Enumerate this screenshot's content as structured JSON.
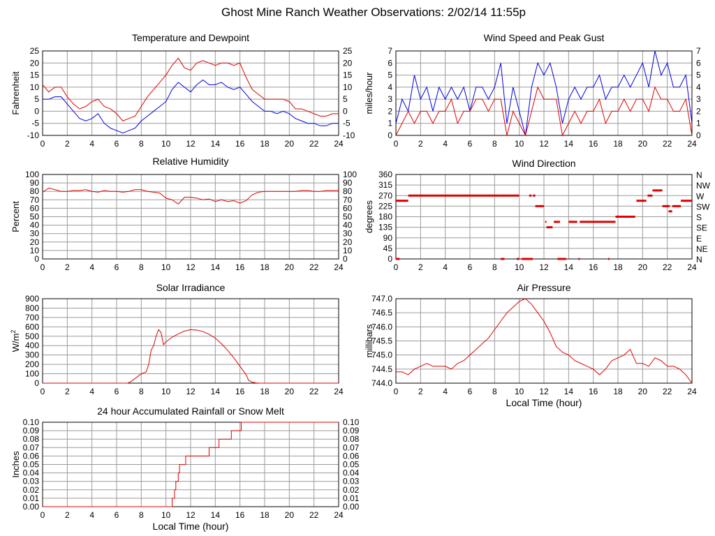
{
  "page": {
    "title": "Ghost Mine Ranch Weather Observations: 2/02/14 11:55p"
  },
  "colors": {
    "red": "#e00000",
    "blue": "#0000e0",
    "grid": "#9a9a9a"
  },
  "chart_data": [
    {
      "id": "temp",
      "type": "line",
      "title": "Temperature and Dewpoint",
      "ylabel": "Fahrenheit",
      "xlabel": "",
      "xlim": [
        0,
        24
      ],
      "ylim": [
        -10,
        25
      ],
      "x_ticks": [
        "0",
        "2",
        "4",
        "6",
        "8",
        "10",
        "12",
        "14",
        "16",
        "18",
        "20",
        "22",
        "24"
      ],
      "y_ticks": [
        "-10",
        "-5",
        "0",
        "5",
        "10",
        "15",
        "20",
        "25"
      ],
      "right_axis": true,
      "grid": true,
      "series": [
        {
          "color": "#e00000",
          "x": [
            0,
            0.5,
            1,
            1.5,
            2,
            2.5,
            3,
            3.5,
            4,
            4.5,
            5,
            5.5,
            6,
            6.5,
            7,
            7.5,
            8,
            8.5,
            9,
            9.5,
            10,
            10.5,
            11,
            11.5,
            12,
            12.5,
            13,
            13.5,
            14,
            14.5,
            15,
            15.5,
            16,
            16.5,
            17,
            17.5,
            18,
            18.5,
            19,
            19.5,
            20,
            20.5,
            21,
            21.5,
            22,
            22.5,
            23,
            23.5,
            24
          ],
          "y": [
            11,
            8,
            10,
            10,
            6,
            3,
            1,
            2,
            4,
            5,
            2,
            1,
            -1,
            -4,
            -3,
            -2,
            2,
            6,
            9,
            12,
            15,
            19,
            22,
            18,
            17,
            20,
            21,
            20,
            19,
            20,
            20,
            19,
            20,
            14,
            9,
            7,
            5,
            5,
            5,
            5,
            4,
            1,
            1,
            0,
            -1,
            -2,
            -2,
            -1,
            -1
          ]
        },
        {
          "color": "#0000e0",
          "x": [
            0,
            0.5,
            1,
            1.5,
            2,
            2.5,
            3,
            3.5,
            4,
            4.5,
            5,
            5.5,
            6,
            6.5,
            7,
            7.5,
            8,
            8.5,
            9,
            9.5,
            10,
            10.5,
            11,
            11.5,
            12,
            12.5,
            13,
            13.5,
            14,
            14.5,
            15,
            15.5,
            16,
            16.5,
            17,
            17.5,
            18,
            18.5,
            19,
            19.5,
            20,
            20.5,
            21,
            21.5,
            22,
            22.5,
            23,
            23.5,
            24
          ],
          "y": [
            5,
            5,
            6,
            6,
            3,
            0,
            -3,
            -4,
            -3,
            -1,
            -5,
            -7,
            -8,
            -9,
            -8,
            -7,
            -4,
            -2,
            0,
            2,
            4,
            9,
            12,
            10,
            8,
            11,
            13,
            11,
            11,
            12,
            10,
            9,
            10,
            7,
            4,
            2,
            0,
            0,
            -1,
            0,
            -1,
            -3,
            -4,
            -5,
            -5,
            -6,
            -6,
            -5,
            -5
          ]
        }
      ]
    },
    {
      "id": "wind",
      "type": "line",
      "title": "Wind Speed and Peak Gust",
      "ylabel": "miles/hour",
      "xlabel": "",
      "xlim": [
        0,
        24
      ],
      "ylim": [
        0,
        7
      ],
      "x_ticks": [
        "0",
        "2",
        "4",
        "6",
        "8",
        "10",
        "12",
        "14",
        "16",
        "18",
        "20",
        "22",
        "24"
      ],
      "y_ticks": [
        "0",
        "1",
        "2",
        "3",
        "4",
        "5",
        "6",
        "7"
      ],
      "right_axis": true,
      "grid": true,
      "series": [
        {
          "color": "#0000e0",
          "x": [
            0,
            0.5,
            1,
            1.5,
            2,
            2.5,
            3,
            3.5,
            4,
            4.5,
            5,
            5.5,
            6,
            6.5,
            7,
            7.5,
            8,
            8.5,
            9,
            9.5,
            10,
            10.5,
            11,
            11.5,
            12,
            12.5,
            13,
            13.5,
            14,
            14.5,
            15,
            15.5,
            16,
            16.5,
            17,
            17.5,
            18,
            18.5,
            19,
            19.5,
            20,
            20.5,
            21,
            21.5,
            22,
            22.5,
            23,
            23.5,
            24
          ],
          "y": [
            1,
            3,
            2,
            5,
            3,
            4,
            2,
            4,
            3,
            4,
            3,
            4,
            2,
            4,
            4,
            3,
            4,
            6,
            1,
            4,
            2,
            0,
            4,
            6,
            5,
            6,
            4,
            1,
            3,
            4,
            3,
            4,
            4,
            5,
            3,
            4,
            4,
            5,
            4,
            5,
            6,
            4,
            7,
            5,
            6,
            4,
            4,
            5,
            1
          ]
        },
        {
          "color": "#e00000",
          "x": [
            0,
            0.5,
            1,
            1.5,
            2,
            2.5,
            3,
            3.5,
            4,
            4.5,
            5,
            5.5,
            6,
            6.5,
            7,
            7.5,
            8,
            8.5,
            9,
            9.5,
            10,
            10.5,
            11,
            11.5,
            12,
            12.5,
            13,
            13.5,
            14,
            14.5,
            15,
            15.5,
            16,
            16.5,
            17,
            17.5,
            18,
            18.5,
            19,
            19.5,
            20,
            20.5,
            21,
            21.5,
            22,
            22.5,
            23,
            23.5,
            24
          ],
          "y": [
            0,
            1,
            2,
            1,
            2,
            2,
            1,
            2,
            2,
            3,
            1,
            2,
            2,
            3,
            3,
            2,
            3,
            3,
            0,
            2,
            1,
            0,
            2,
            4,
            3,
            3,
            3,
            0,
            1,
            2,
            1,
            2,
            2,
            3,
            1,
            2,
            2,
            3,
            2,
            3,
            3,
            2,
            4,
            3,
            3,
            2,
            2,
            3,
            0
          ]
        }
      ]
    },
    {
      "id": "rh",
      "type": "line",
      "title": "Relative Humidity",
      "ylabel": "Percent",
      "xlabel": "",
      "xlim": [
        0,
        24
      ],
      "ylim": [
        0,
        100
      ],
      "x_ticks": [
        "0",
        "2",
        "4",
        "6",
        "8",
        "10",
        "12",
        "14",
        "16",
        "18",
        "20",
        "22",
        "24"
      ],
      "y_ticks": [
        "0",
        "10",
        "20",
        "30",
        "40",
        "50",
        "60",
        "70",
        "80",
        "90",
        "100"
      ],
      "right_axis": true,
      "grid": true,
      "series": [
        {
          "color": "#e00000",
          "x": [
            0,
            0.5,
            1,
            1.5,
            2,
            2.5,
            3,
            3.5,
            4,
            4.5,
            5,
            5.5,
            6,
            6.5,
            7,
            7.5,
            8,
            8.5,
            9,
            9.5,
            10,
            10.5,
            11,
            11.5,
            12,
            12.5,
            13,
            13.5,
            14,
            14.5,
            15,
            15.5,
            16,
            16.5,
            17,
            17.5,
            18,
            18.5,
            19,
            19.5,
            20,
            20.5,
            21,
            21.5,
            22,
            22.5,
            23,
            23.5,
            24
          ],
          "y": [
            79,
            84,
            82,
            80,
            80,
            81,
            81,
            82,
            80,
            79,
            81,
            80,
            80,
            79,
            80,
            82,
            82,
            80,
            79,
            78,
            72,
            70,
            65,
            73,
            73,
            72,
            70,
            71,
            68,
            70,
            68,
            69,
            66,
            69,
            76,
            79,
            80,
            80,
            80,
            80,
            80,
            80,
            81,
            81,
            80,
            80,
            81,
            81,
            81
          ]
        }
      ]
    },
    {
      "id": "wdir",
      "type": "scatter",
      "title": "Wind Direction",
      "ylabel": "degrees",
      "xlabel": "",
      "xlim": [
        0,
        24
      ],
      "ylim": [
        0,
        360
      ],
      "x_ticks": [
        "0",
        "2",
        "4",
        "6",
        "8",
        "10",
        "12",
        "14",
        "16",
        "18",
        "20",
        "22",
        "24"
      ],
      "y_ticks": [
        "0",
        "45",
        "90",
        "135",
        "180",
        "225",
        "270",
        "315",
        "360"
      ],
      "right_labels": [
        "N",
        "NE",
        "E",
        "SE",
        "S",
        "SW",
        "W",
        "NW",
        "N"
      ],
      "grid": true,
      "segments": [
        {
          "x0": 0,
          "x1": 1.0,
          "y": 248
        },
        {
          "x0": 1.0,
          "x1": 8.4,
          "y": 270
        },
        {
          "x0": 8.4,
          "x1": 10.0,
          "y": 270
        },
        {
          "x0": 10.8,
          "x1": 11.0,
          "y": 270
        },
        {
          "x0": 11.1,
          "x1": 11.3,
          "y": 270
        },
        {
          "x0": 11.3,
          "x1": 12.0,
          "y": 225
        },
        {
          "x0": 12.1,
          "x1": 12.2,
          "y": 158
        },
        {
          "x0": 12.2,
          "x1": 12.7,
          "y": 135
        },
        {
          "x0": 12.8,
          "x1": 13.3,
          "y": 158
        },
        {
          "x0": 14.0,
          "x1": 14.7,
          "y": 158
        },
        {
          "x0": 14.9,
          "x1": 17.8,
          "y": 158
        },
        {
          "x0": 17.8,
          "x1": 19.4,
          "y": 180
        },
        {
          "x0": 19.5,
          "x1": 20.3,
          "y": 248
        },
        {
          "x0": 20.4,
          "x1": 20.8,
          "y": 270
        },
        {
          "x0": 20.8,
          "x1": 21.6,
          "y": 292
        },
        {
          "x0": 21.6,
          "x1": 22.2,
          "y": 225
        },
        {
          "x0": 22.1,
          "x1": 22.4,
          "y": 203
        },
        {
          "x0": 22.4,
          "x1": 23.1,
          "y": 225
        },
        {
          "x0": 23.1,
          "x1": 24,
          "y": 248
        },
        {
          "x0": 0,
          "x1": 0.3,
          "y": 0
        },
        {
          "x0": 8.5,
          "x1": 8.8,
          "y": 0
        },
        {
          "x0": 9.8,
          "x1": 10.0,
          "y": 0
        },
        {
          "x0": 10.2,
          "x1": 11.1,
          "y": 0
        },
        {
          "x0": 13.1,
          "x1": 13.8,
          "y": 0
        },
        {
          "x0": 14.8,
          "x1": 14.9,
          "y": 0
        },
        {
          "x0": 17.2,
          "x1": 17.3,
          "y": 0
        }
      ]
    },
    {
      "id": "solar",
      "type": "line",
      "title": "Solar Irradiance",
      "ylabel": "W/m2",
      "xlabel": "",
      "xlim": [
        0,
        24
      ],
      "ylim": [
        0,
        900
      ],
      "x_ticks": [
        "0",
        "2",
        "4",
        "6",
        "8",
        "10",
        "12",
        "14",
        "16",
        "18",
        "20",
        "22",
        "24"
      ],
      "y_ticks": [
        "0",
        "100",
        "200",
        "300",
        "400",
        "500",
        "600",
        "700",
        "800",
        "900"
      ],
      "right_axis": false,
      "grid": true,
      "series": [
        {
          "color": "#e00000",
          "x": [
            0,
            6.9,
            7.2,
            7.6,
            8.0,
            8.4,
            8.6,
            8.8,
            9.0,
            9.2,
            9.4,
            9.6,
            9.8,
            10.0,
            10.5,
            11.0,
            11.5,
            12.0,
            12.5,
            13.0,
            13.5,
            14.0,
            14.5,
            15.0,
            15.5,
            16.0,
            16.5,
            16.7,
            17.0,
            17.3,
            17.6,
            18,
            24
          ],
          "y": [
            0,
            0,
            20,
            60,
            100,
            120,
            200,
            350,
            400,
            500,
            570,
            540,
            410,
            440,
            490,
            525,
            555,
            570,
            565,
            550,
            520,
            480,
            420,
            350,
            270,
            180,
            90,
            30,
            10,
            3,
            0,
            0,
            0
          ]
        }
      ]
    },
    {
      "id": "pressure",
      "type": "line",
      "title": "Air Pressure",
      "ylabel": "millibars",
      "xlabel": "Local Time (hour)",
      "xlim": [
        0,
        24
      ],
      "ylim": [
        744.0,
        747.0
      ],
      "x_ticks": [
        "0",
        "2",
        "4",
        "6",
        "8",
        "10",
        "12",
        "14",
        "16",
        "18",
        "20",
        "22",
        "24"
      ],
      "y_ticks": [
        "744.0",
        "744.5",
        "745.0",
        "745.5",
        "746.0",
        "746.5",
        "747.0"
      ],
      "right_axis": false,
      "grid": true,
      "series": [
        {
          "color": "#e00000",
          "x": [
            0,
            0.5,
            1,
            1.5,
            2,
            2.5,
            3,
            3.5,
            4,
            4.5,
            5,
            5.5,
            6,
            6.5,
            7,
            7.5,
            8,
            8.5,
            9,
            9.5,
            10,
            10.5,
            11,
            11.5,
            12,
            12.5,
            13,
            13.5,
            14,
            14.5,
            15,
            15.5,
            16,
            16.5,
            17,
            17.5,
            18,
            18.5,
            19,
            19.5,
            20,
            20.5,
            21,
            21.5,
            22,
            22.5,
            23,
            23.5,
            24
          ],
          "y": [
            744.4,
            744.4,
            744.3,
            744.5,
            744.6,
            744.7,
            744.6,
            744.6,
            744.6,
            744.5,
            744.7,
            744.8,
            745.0,
            745.2,
            745.4,
            745.6,
            745.9,
            746.2,
            746.5,
            746.7,
            746.9,
            747.0,
            746.8,
            746.5,
            746.2,
            745.8,
            745.3,
            745.1,
            745.0,
            744.8,
            744.7,
            744.6,
            744.5,
            744.3,
            744.5,
            744.8,
            744.9,
            745.0,
            745.2,
            744.7,
            744.7,
            744.6,
            744.9,
            744.8,
            744.6,
            744.6,
            744.5,
            744.3,
            744.0
          ]
        }
      ]
    },
    {
      "id": "rain",
      "type": "line",
      "title": "24 hour Accumulated Rainfall or Snow Melt",
      "ylabel": "Inches",
      "xlabel": "Local Time (hour)",
      "xlim": [
        0,
        24
      ],
      "ylim": [
        0,
        0.1
      ],
      "x_ticks": [
        "0",
        "2",
        "4",
        "6",
        "8",
        "10",
        "12",
        "14",
        "16",
        "18",
        "20",
        "22",
        "24"
      ],
      "y_ticks": [
        "0.00",
        "0.01",
        "0.02",
        "0.03",
        "0.04",
        "0.05",
        "0.06",
        "0.07",
        "0.08",
        "0.09",
        "0.10"
      ],
      "right_axis": true,
      "grid": true,
      "series": [
        {
          "color": "#e00000",
          "step": true,
          "x": [
            0,
            10.3,
            10.5,
            10.7,
            10.8,
            11.0,
            11.1,
            11.3,
            11.6,
            12.2,
            13.5,
            14.3,
            14.8,
            15.3,
            15.6,
            16.1,
            24
          ],
          "y": [
            0,
            0,
            0.01,
            0.02,
            0.03,
            0.04,
            0.05,
            0.05,
            0.06,
            0.06,
            0.07,
            0.08,
            0.08,
            0.09,
            0.09,
            0.1,
            0.1
          ]
        }
      ]
    }
  ]
}
